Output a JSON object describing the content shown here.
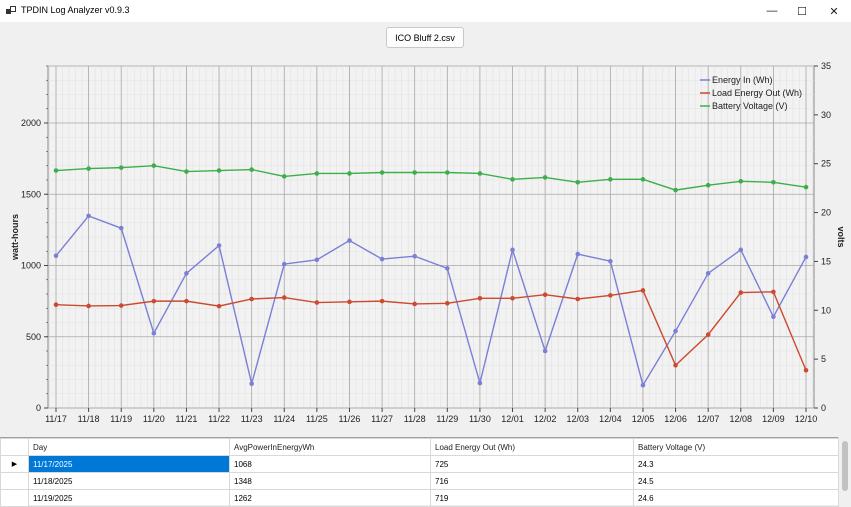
{
  "window": {
    "title": "TPDIN Log Analyzer v0.9.3",
    "minimize_glyph": "—",
    "maximize_glyph": "☐",
    "close_glyph": "✕"
  },
  "file_button": {
    "label": "ICO Bluff 2.csv"
  },
  "chart_data": {
    "type": "line",
    "categories": [
      "11/17",
      "11/18",
      "11/19",
      "11/20",
      "11/21",
      "11/22",
      "11/23",
      "11/24",
      "11/25",
      "11/26",
      "11/27",
      "11/28",
      "11/29",
      "11/30",
      "12/01",
      "12/02",
      "12/03",
      "12/04",
      "12/05",
      "12/06",
      "12/07",
      "12/08",
      "12/09",
      "12/10"
    ],
    "ylabel": "watt-hours",
    "y2label": "volts",
    "ylim": [
      0,
      2400
    ],
    "y2lim": [
      0,
      35
    ],
    "yticks": [
      0,
      500,
      1000,
      1500,
      2000
    ],
    "y2ticks": [
      0,
      5,
      10,
      15,
      20,
      25,
      30,
      35
    ],
    "legend_position": "top-right",
    "grid": true,
    "series": [
      {
        "name": "Energy In (Wh)",
        "axis": "left",
        "color": "#7b7fd6",
        "values": [
          1068,
          1348,
          1262,
          525,
          945,
          1140,
          170,
          1010,
          1040,
          1175,
          1045,
          1065,
          980,
          175,
          1110,
          400,
          1080,
          1030,
          160,
          540,
          945,
          1110,
          640,
          1060
        ]
      },
      {
        "name": "Load Energy Out (Wh)",
        "axis": "left",
        "color": "#cc4a2f",
        "values": [
          725,
          716,
          719,
          750,
          750,
          715,
          765,
          775,
          740,
          745,
          750,
          730,
          735,
          770,
          770,
          795,
          765,
          790,
          825,
          300,
          515,
          810,
          815,
          265
        ]
      },
      {
        "name": "Battery Voltage (V)",
        "axis": "right",
        "color": "#3daf4a",
        "values": [
          24.3,
          24.5,
          24.6,
          24.8,
          24.2,
          24.3,
          24.4,
          23.7,
          24.0,
          24.0,
          24.1,
          24.1,
          24.1,
          24.0,
          23.4,
          23.6,
          23.1,
          23.4,
          23.4,
          22.3,
          22.8,
          23.2,
          23.1,
          22.6
        ]
      }
    ]
  },
  "grid": {
    "columns": [
      "Day",
      "AvgPowerInEnergyWh",
      "Load Energy Out (Wh)",
      "Battery Voltage (V)"
    ],
    "selected_row_marker": "▶",
    "rows": [
      [
        "11/17/2025",
        "1068",
        "725",
        "24.3"
      ],
      [
        "11/18/2025",
        "1348",
        "716",
        "24.5"
      ],
      [
        "11/19/2025",
        "1262",
        "719",
        "24.6"
      ]
    ]
  }
}
